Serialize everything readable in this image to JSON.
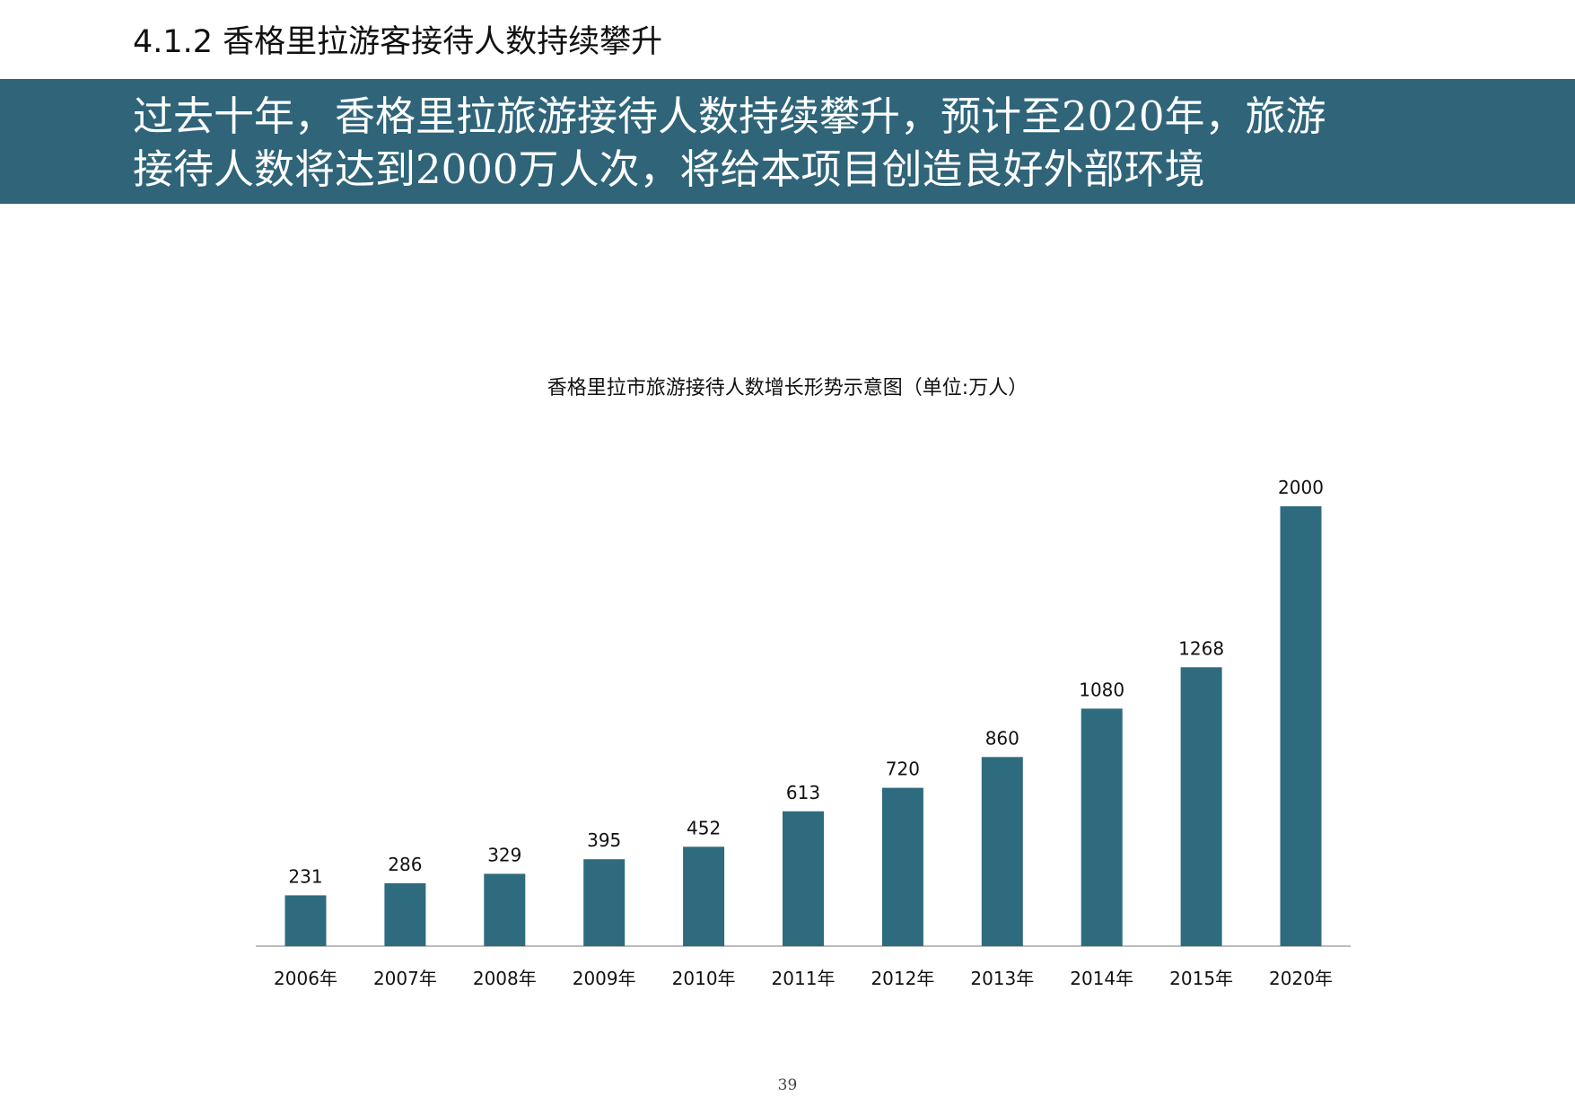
{
  "section": {
    "heading": "4.1.2 香格里拉游客接待人数持续攀升"
  },
  "banner": {
    "lines": [
      "过去十年，香格里拉旅游接待人数持续攀升，预计至2020年，旅游",
      "接待人数将达到2000万人次，将给本项目创造良好外部环境"
    ]
  },
  "colors": {
    "banner_background": "#2f6479",
    "bar": "#2f6b7e",
    "axis": "#a6a6a6"
  },
  "chart_data": {
    "type": "bar",
    "title": "香格里拉市旅游接待人数增长形势示意图（单位:万人）",
    "categories": [
      "2006年",
      "2007年",
      "2008年",
      "2009年",
      "2010年",
      "2011年",
      "2012年",
      "2013年",
      "2014年",
      "2015年",
      "2020年"
    ],
    "series": [
      {
        "values": [
          231,
          286,
          329,
          395,
          452,
          613,
          720,
          860,
          1080,
          1268,
          2000
        ]
      }
    ],
    "data_labels": true,
    "y_axis_visible": false,
    "grid": false,
    "ylim": [
      0,
      2000
    ]
  },
  "footer": {
    "page_number": "39"
  }
}
